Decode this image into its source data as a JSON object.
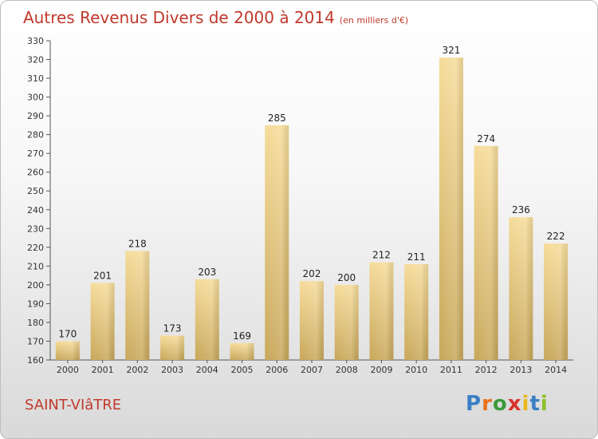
{
  "title": "Autres Revenus Divers de 2000 à 2014",
  "subtitle": "(en milliers d'€)",
  "location": "SAINT-VIâTRE",
  "logo": {
    "letters": [
      {
        "ch": "P",
        "color": "#3a7fc4"
      },
      {
        "ch": "r",
        "color": "#e8711a"
      },
      {
        "ch": "o",
        "color": "#3a9a3a"
      },
      {
        "ch": "x",
        "color": "#d9342b"
      },
      {
        "ch": "i",
        "color": "#e8b81a"
      },
      {
        "ch": "t",
        "color": "#3a7fc4"
      },
      {
        "ch": "i",
        "color": "#8fbf2a"
      }
    ]
  },
  "chart_data": {
    "type": "bar",
    "title": "Autres Revenus Divers de 2000 à 2014",
    "subtitle": "(en milliers d'€)",
    "categories": [
      "2000",
      "2001",
      "2002",
      "2003",
      "2004",
      "2005",
      "2006",
      "2007",
      "2008",
      "2009",
      "2010",
      "2011",
      "2012",
      "2013",
      "2014"
    ],
    "values": [
      170,
      201,
      218,
      173,
      203,
      169,
      285,
      202,
      200,
      212,
      211,
      321,
      274,
      236,
      222
    ],
    "ylim": [
      160,
      330
    ],
    "ytick_step": 10,
    "grid": false,
    "bar_color": "#e6c675"
  }
}
